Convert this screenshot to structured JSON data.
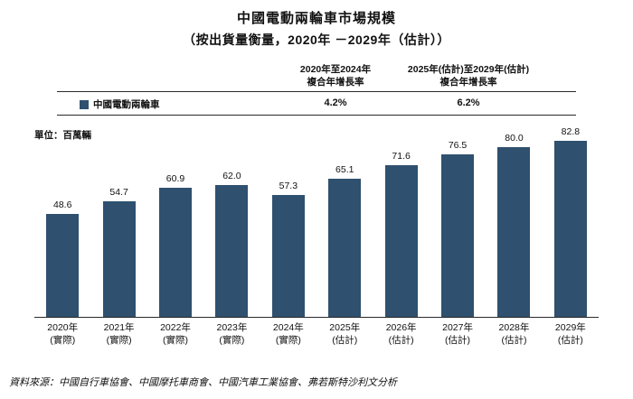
{
  "title": {
    "line1": "中國電動兩輪車市場規模",
    "line2": "（按出貨量衡量，2020年 －2029年（估計））"
  },
  "cagr_header": {
    "col1_line1": "2020年至2024年",
    "col1_line2": "複合年增長率",
    "col1_value": "4.2%",
    "col2_line1": "2025年(估計)至2029年(估計)",
    "col2_line2": "複合年增長率",
    "col2_value": "6.2%"
  },
  "legend": {
    "label": "中國電動兩輪車",
    "color": "#2f506e"
  },
  "unit_label": "單位：百萬輛",
  "chart_data": {
    "type": "bar",
    "title": "中國電動兩輪車市場規模（按出貨量衡量，2020年－2029年（估計））",
    "categories": [
      "2020年 (實際)",
      "2021年 (實際)",
      "2022年 (實際)",
      "2023年 (實際)",
      "2024年 (實際)",
      "2025年 (估計)",
      "2026年 (估計)",
      "2027年 (估計)",
      "2028年 (估計)",
      "2029年 (估計)"
    ],
    "values": [
      48.6,
      54.7,
      60.9,
      62.0,
      57.3,
      65.1,
      71.6,
      76.5,
      80.0,
      82.8
    ],
    "xlabel": "",
    "ylabel": "百萬輛",
    "ylim": [
      0,
      90
    ],
    "grid": false,
    "legend_position": "top-left",
    "bar_color": "#2f506e",
    "cagr_2020_2024": "4.2%",
    "cagr_2025_2029": "6.2%"
  },
  "source": "資料來源：中國自行車協會、中國摩托車商會、中國汽車工業協會、弗若斯特沙利文分析"
}
